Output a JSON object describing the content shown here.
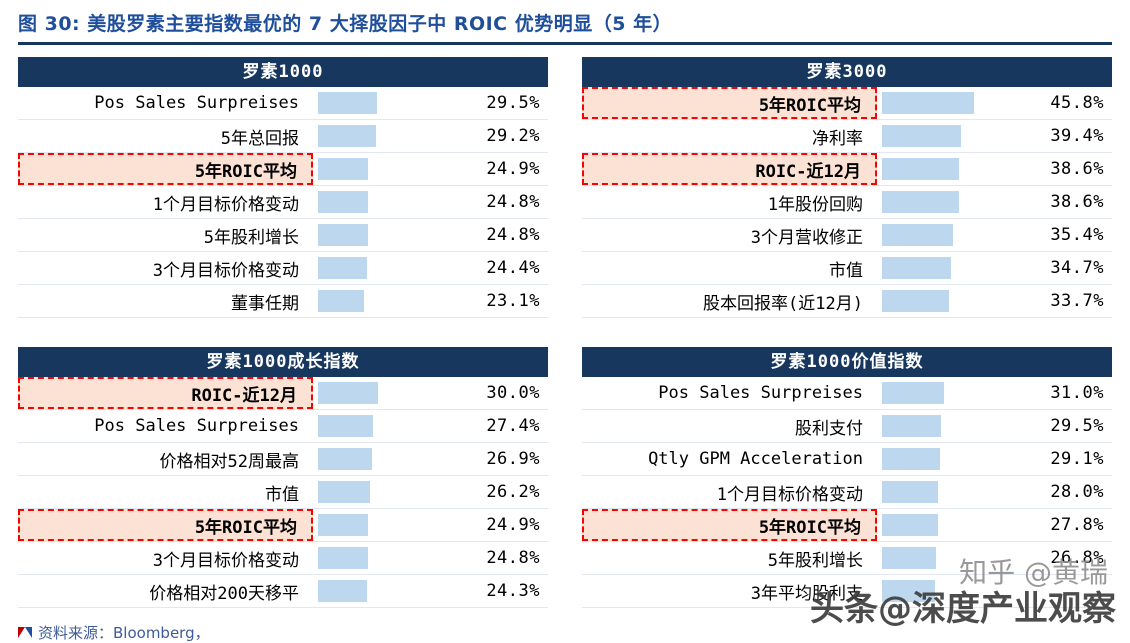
{
  "page": {
    "title": "图 30: 美股罗素主要指数最优的 7 大择股因子中 ROIC 优势明显（5 年）",
    "source_note": "资料来源：Bloomberg，",
    "watermark_zhihu": "知乎 @黄瑞",
    "watermark_toutiao": "头条@深度产业观察"
  },
  "colors": {
    "title_text": "#1F4E9B",
    "title_rule": "#16365C",
    "header_bg": "#17375E",
    "header_text": "#FFFFFF",
    "bar_fill": "#BDD7EE",
    "highlight_bg": "#FBE2D5",
    "highlight_border": "#FF0000",
    "row_border": "#E3E7EF"
  },
  "chart_data": [
    {
      "type": "bar",
      "title": "罗素1000",
      "unit": "%",
      "bar_scale_max": 46,
      "rows": [
        {
          "label": "Pos Sales Surpreises",
          "value": "29.5%",
          "num": 29.5,
          "highlight": false
        },
        {
          "label": "5年总回报",
          "value": "29.2%",
          "num": 29.2,
          "highlight": false
        },
        {
          "label": "5年ROIC平均",
          "value": "24.9%",
          "num": 24.9,
          "highlight": true
        },
        {
          "label": "1个月目标价格变动",
          "value": "24.8%",
          "num": 24.8,
          "highlight": false
        },
        {
          "label": "5年股利增长",
          "value": "24.8%",
          "num": 24.8,
          "highlight": false
        },
        {
          "label": "3个月目标价格变动",
          "value": "24.4%",
          "num": 24.4,
          "highlight": false
        },
        {
          "label": "董事任期",
          "value": "23.1%",
          "num": 23.1,
          "highlight": false
        }
      ]
    },
    {
      "type": "bar",
      "title": "罗素3000",
      "unit": "%",
      "bar_scale_max": 46,
      "rows": [
        {
          "label": "5年ROIC平均",
          "value": "45.8%",
          "num": 45.8,
          "highlight": true
        },
        {
          "label": "净利率",
          "value": "39.4%",
          "num": 39.4,
          "highlight": false
        },
        {
          "label": "ROIC-近12月",
          "value": "38.6%",
          "num": 38.6,
          "highlight": true
        },
        {
          "label": "1年股份回购",
          "value": "38.6%",
          "num": 38.6,
          "highlight": false
        },
        {
          "label": "3个月营收修正",
          "value": "35.4%",
          "num": 35.4,
          "highlight": false
        },
        {
          "label": "市值",
          "value": "34.7%",
          "num": 34.7,
          "highlight": false
        },
        {
          "label": "股本回报率(近12月)",
          "value": "33.7%",
          "num": 33.7,
          "highlight": false
        }
      ]
    },
    {
      "type": "bar",
      "title": "罗素1000成长指数",
      "unit": "%",
      "bar_scale_max": 46,
      "rows": [
        {
          "label": "ROIC-近12月",
          "value": "30.0%",
          "num": 30.0,
          "highlight": true
        },
        {
          "label": "Pos Sales Surpreises",
          "value": "27.4%",
          "num": 27.4,
          "highlight": false
        },
        {
          "label": "价格相对52周最高",
          "value": "26.9%",
          "num": 26.9,
          "highlight": false
        },
        {
          "label": "市值",
          "value": "26.2%",
          "num": 26.2,
          "highlight": false
        },
        {
          "label": "5年ROIC平均",
          "value": "24.9%",
          "num": 24.9,
          "highlight": true
        },
        {
          "label": "3个月目标价格变动",
          "value": "24.8%",
          "num": 24.8,
          "highlight": false
        },
        {
          "label": "价格相对200天移平",
          "value": "24.3%",
          "num": 24.3,
          "highlight": false
        }
      ]
    },
    {
      "type": "bar",
      "title": "罗素1000价值指数",
      "unit": "%",
      "bar_scale_max": 46,
      "rows": [
        {
          "label": "Pos Sales Surpreises",
          "value": "31.0%",
          "num": 31.0,
          "highlight": false
        },
        {
          "label": "股利支付",
          "value": "29.5%",
          "num": 29.5,
          "highlight": false
        },
        {
          "label": "Qtly GPM Acceleration",
          "value": "29.1%",
          "num": 29.1,
          "highlight": false
        },
        {
          "label": "1个月目标价格变动",
          "value": "28.0%",
          "num": 28.0,
          "highlight": false
        },
        {
          "label": "5年ROIC平均",
          "value": "27.8%",
          "num": 27.8,
          "highlight": true
        },
        {
          "label": "5年股利增长",
          "value": "26.8%",
          "num": 26.8,
          "highlight": false
        },
        {
          "label": "3年平均股利支",
          "value": "",
          "num": 26.5,
          "highlight": false
        }
      ]
    }
  ]
}
